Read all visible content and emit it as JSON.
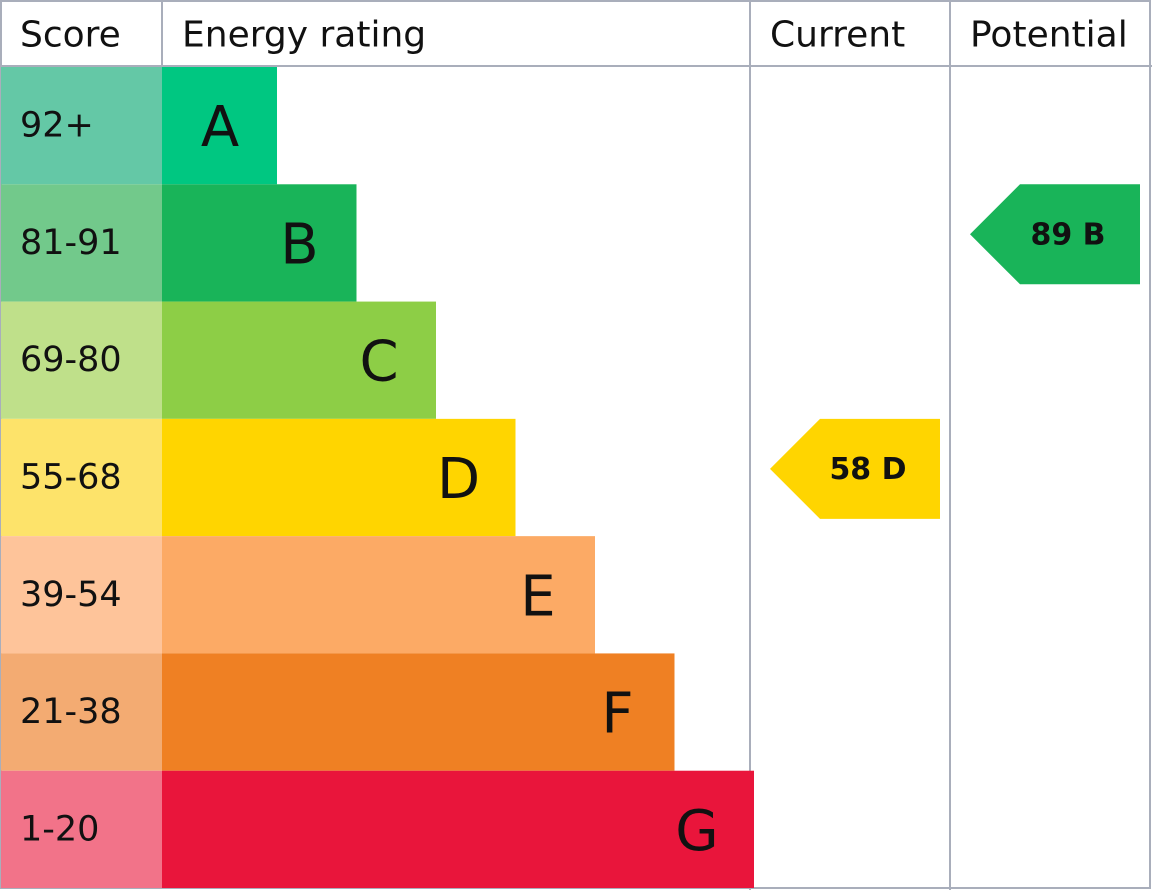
{
  "header": {
    "score": "Score",
    "energy_rating": "Energy rating",
    "current": "Current",
    "potential": "Potential"
  },
  "bands": [
    {
      "score": "92+",
      "rating": "A",
      "score_color": "#64c8a6",
      "color": "#00c781"
    },
    {
      "score": "81-91",
      "rating": "B",
      "score_color": "#72c98b",
      "color": "#19b459"
    },
    {
      "score": "69-80",
      "rating": "C",
      "score_color": "#bfe08a",
      "color": "#8dce46"
    },
    {
      "score": "55-68",
      "rating": "D",
      "score_color": "#fde36a",
      "color": "#ffd500"
    },
    {
      "score": "39-54",
      "rating": "E",
      "score_color": "#fec49a",
      "color": "#fcaa65"
    },
    {
      "score": "21-38",
      "rating": "F",
      "score_color": "#f3ab72",
      "color": "#ef8023"
    },
    {
      "score": "1-20",
      "rating": "G",
      "score_color": "#f27389",
      "color": "#e9153b"
    }
  ],
  "current": {
    "score": 58,
    "rating": "D"
  },
  "potential": {
    "score": 89,
    "rating": "B"
  }
}
